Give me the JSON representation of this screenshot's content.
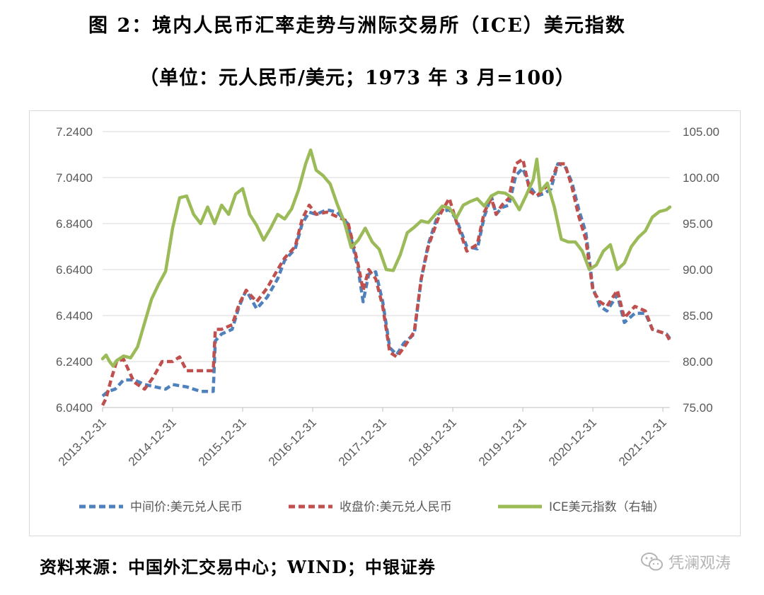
{
  "header": {
    "title": "图 2：境内人民币汇率走势与洲际交易所（ICE）美元指数",
    "subtitle": "（单位：元人民币/美元；1973 年 3 月=100）"
  },
  "footer": {
    "source": "资料来源：中国外汇交易中心；WIND；中银证券",
    "watermark": "凭澜观涛"
  },
  "chart_data": {
    "type": "line",
    "x_ticks": [
      "2013-12-31",
      "2014-12-31",
      "2015-12-31",
      "2016-12-31",
      "2017-12-31",
      "2018-12-31",
      "2019-12-31",
      "2020-12-31",
      "2021-12-31"
    ],
    "x_range": [
      2014.0,
      2022.1
    ],
    "left_axis": {
      "ticks": [
        "6.0400",
        "6.2400",
        "6.4400",
        "6.6400",
        "6.8400",
        "7.0400",
        "7.2400"
      ],
      "ylim": [
        6.04,
        7.24
      ]
    },
    "right_axis": {
      "ticks": [
        "75.00",
        "80.00",
        "85.00",
        "90.00",
        "95.00",
        "100.00",
        "105.00"
      ],
      "ylim": [
        75,
        105
      ]
    },
    "grid": "horizontal",
    "legend_position": "bottom",
    "series": [
      {
        "name": "中间价:美元兑人民币",
        "axis": "left",
        "color": "#4f81bd",
        "style": "dashed",
        "x": [
          2014.0,
          2014.08,
          2014.18,
          2014.3,
          2014.45,
          2014.6,
          2014.75,
          2014.9,
          2015.0,
          2015.2,
          2015.4,
          2015.58,
          2015.61,
          2015.7,
          2015.85,
          2015.95,
          2016.05,
          2016.2,
          2016.35,
          2016.5,
          2016.6,
          2016.75,
          2016.85,
          2016.95,
          2017.05,
          2017.2,
          2017.35,
          2017.5,
          2017.65,
          2017.72,
          2017.8,
          2017.9,
          2018.0,
          2018.1,
          2018.2,
          2018.3,
          2018.45,
          2018.55,
          2018.65,
          2018.8,
          2018.95,
          2019.05,
          2019.2,
          2019.35,
          2019.45,
          2019.55,
          2019.62,
          2019.7,
          2019.8,
          2019.9,
          2020.0,
          2020.1,
          2020.2,
          2020.3,
          2020.4,
          2020.5,
          2020.6,
          2020.7,
          2020.8,
          2020.9,
          2021.0,
          2021.1,
          2021.2,
          2021.35,
          2021.45,
          2021.6,
          2021.75,
          2021.85,
          2021.95,
          2022.05,
          2022.1
        ],
        "y": [
          6.09,
          6.11,
          6.12,
          6.16,
          6.16,
          6.14,
          6.13,
          6.12,
          6.14,
          6.13,
          6.11,
          6.11,
          6.33,
          6.36,
          6.38,
          6.48,
          6.55,
          6.47,
          6.52,
          6.6,
          6.68,
          6.73,
          6.84,
          6.89,
          6.88,
          6.9,
          6.89,
          6.84,
          6.64,
          6.5,
          6.62,
          6.63,
          6.5,
          6.3,
          6.27,
          6.32,
          6.36,
          6.6,
          6.75,
          6.89,
          6.9,
          6.86,
          6.74,
          6.73,
          6.87,
          6.96,
          6.88,
          6.91,
          6.92,
          7.05,
          7.08,
          7.0,
          6.96,
          6.97,
          6.99,
          7.1,
          7.09,
          7.02,
          6.9,
          6.8,
          6.56,
          6.48,
          6.46,
          6.53,
          6.41,
          6.45,
          6.45,
          6.38,
          6.37,
          6.36,
          6.34
        ]
      },
      {
        "name": "收盘价:美元兑人民币",
        "axis": "left",
        "color": "#c0504d",
        "style": "dashed",
        "x": [
          2014.0,
          2014.05,
          2014.12,
          2014.2,
          2014.3,
          2014.45,
          2014.6,
          2014.72,
          2014.85,
          2015.0,
          2015.1,
          2015.2,
          2015.35,
          2015.5,
          2015.58,
          2015.61,
          2015.7,
          2015.85,
          2015.95,
          2016.05,
          2016.2,
          2016.35,
          2016.5,
          2016.6,
          2016.75,
          2016.85,
          2016.95,
          2017.05,
          2017.2,
          2017.35,
          2017.5,
          2017.65,
          2017.72,
          2017.8,
          2017.9,
          2018.0,
          2018.1,
          2018.2,
          2018.3,
          2018.45,
          2018.55,
          2018.65,
          2018.8,
          2018.95,
          2019.05,
          2019.2,
          2019.35,
          2019.45,
          2019.55,
          2019.62,
          2019.7,
          2019.8,
          2019.9,
          2020.0,
          2020.1,
          2020.2,
          2020.3,
          2020.4,
          2020.5,
          2020.6,
          2020.7,
          2020.8,
          2020.9,
          2021.0,
          2021.1,
          2021.2,
          2021.35,
          2021.45,
          2021.6,
          2021.75,
          2021.85,
          2021.95,
          2022.05,
          2022.1
        ],
        "y": [
          6.05,
          6.08,
          6.16,
          6.24,
          6.25,
          6.15,
          6.12,
          6.17,
          6.24,
          6.24,
          6.26,
          6.2,
          6.2,
          6.2,
          6.2,
          6.38,
          6.38,
          6.4,
          6.49,
          6.55,
          6.5,
          6.56,
          6.64,
          6.69,
          6.74,
          6.86,
          6.92,
          6.88,
          6.89,
          6.87,
          6.85,
          6.66,
          6.55,
          6.64,
          6.6,
          6.48,
          6.28,
          6.26,
          6.3,
          6.37,
          6.6,
          6.74,
          6.87,
          6.95,
          6.85,
          6.72,
          6.75,
          6.89,
          6.95,
          6.88,
          6.92,
          6.95,
          7.1,
          7.12,
          6.98,
          6.96,
          6.99,
          7.02,
          7.1,
          7.1,
          7.0,
          6.87,
          6.77,
          6.55,
          6.5,
          6.48,
          6.55,
          6.43,
          6.48,
          6.46,
          6.38,
          6.37,
          6.36,
          6.33
        ]
      },
      {
        "name": "ICE美元指数（右轴）",
        "axis": "right",
        "color": "#9bbb59",
        "style": "solid",
        "x": [
          2014.0,
          2014.05,
          2014.1,
          2014.15,
          2014.2,
          2014.3,
          2014.4,
          2014.5,
          2014.6,
          2014.7,
          2014.8,
          2014.9,
          2015.0,
          2015.1,
          2015.2,
          2015.3,
          2015.4,
          2015.5,
          2015.6,
          2015.7,
          2015.8,
          2015.9,
          2016.0,
          2016.1,
          2016.2,
          2016.3,
          2016.4,
          2016.5,
          2016.6,
          2016.7,
          2016.8,
          2016.9,
          2016.97,
          2017.05,
          2017.15,
          2017.25,
          2017.35,
          2017.45,
          2017.55,
          2017.65,
          2017.75,
          2017.85,
          2017.95,
          2018.05,
          2018.15,
          2018.25,
          2018.35,
          2018.45,
          2018.55,
          2018.65,
          2018.75,
          2018.85,
          2018.95,
          2019.05,
          2019.15,
          2019.25,
          2019.35,
          2019.45,
          2019.55,
          2019.65,
          2019.75,
          2019.85,
          2019.95,
          2020.05,
          2020.15,
          2020.2,
          2020.25,
          2020.35,
          2020.45,
          2020.55,
          2020.65,
          2020.75,
          2020.85,
          2020.95,
          2021.05,
          2021.15,
          2021.25,
          2021.35,
          2021.45,
          2021.55,
          2021.65,
          2021.75,
          2021.85,
          2021.95,
          2022.05,
          2022.1
        ],
        "y": [
          80.3,
          80.7,
          80.0,
          79.5,
          80.1,
          80.6,
          80.4,
          81.6,
          84.2,
          86.8,
          88.4,
          89.8,
          94.5,
          97.8,
          98.0,
          96.0,
          95.0,
          96.8,
          95.0,
          97.0,
          96.0,
          98.2,
          98.8,
          96.0,
          94.8,
          93.2,
          94.5,
          96.0,
          95.5,
          96.6,
          98.7,
          101.5,
          103.0,
          100.8,
          100.2,
          99.3,
          97.1,
          95.2,
          92.4,
          93.2,
          94.5,
          93.0,
          92.2,
          90.0,
          89.9,
          91.6,
          94.0,
          94.6,
          95.3,
          95.1,
          96.0,
          96.9,
          96.7,
          95.6,
          97.0,
          97.4,
          97.7,
          96.9,
          98.0,
          98.4,
          98.3,
          97.8,
          96.5,
          98.1,
          99.8,
          102.0,
          98.5,
          99.4,
          96.8,
          93.3,
          93.0,
          93.0,
          92.0,
          90.0,
          90.5,
          92.0,
          92.7,
          90.0,
          90.7,
          92.5,
          93.5,
          94.2,
          95.7,
          96.3,
          96.5,
          96.8
        ]
      }
    ]
  }
}
